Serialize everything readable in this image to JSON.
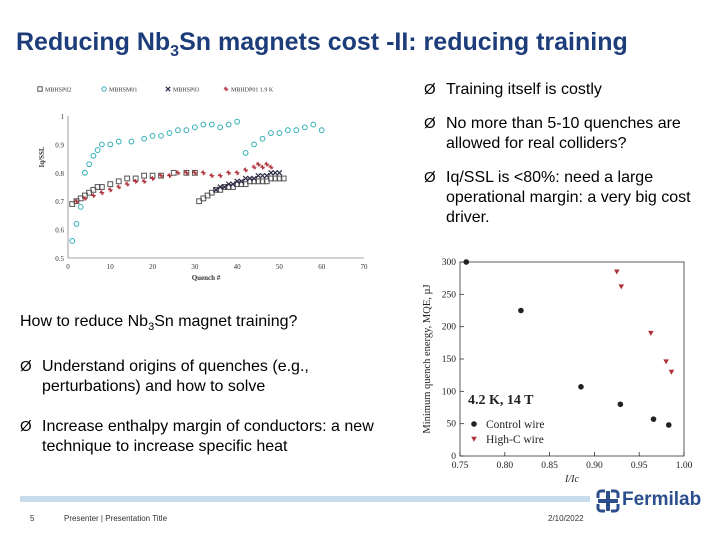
{
  "slide": {
    "title_a": "Reducing Nb",
    "title_sub": "3",
    "title_b": "Sn magnets cost -II: reducing training",
    "bullets_right": [
      "Training itself is costly",
      "No more than 5-10 quenches are allowed for real colliders?",
      "Iq/SSL is <80%: need a large operational margin: a very big cost driver."
    ],
    "question_a": "How to reduce Nb",
    "question_sub": "3",
    "question_b": "Sn magnet training?",
    "bullets_left": [
      "Understand origins of quenches (e.g., perturbations) and how to solve",
      "Increase enthalpy margin of conductors: a new technique to increase specific heat"
    ],
    "bullet_arrow": "Ø"
  },
  "footer": {
    "page_number": "5",
    "presenter": "Presenter | Presentation Title",
    "date": "2/10/2022",
    "logo_text": "Fermilab"
  },
  "colors": {
    "title": "#1d3d7a",
    "c1": "#555555",
    "c2": "#35b0b8",
    "c3": "#2a2a44",
    "c4": "#b0303a"
  },
  "chart_data": [
    {
      "type": "scatter",
      "title": "",
      "xlabel": "Quench #",
      "ylabel": "Iq/SSL",
      "xlim": [
        0,
        70
      ],
      "ylim": [
        0.5,
        1.0
      ],
      "xticks": [
        0,
        10,
        20,
        30,
        40,
        50,
        60,
        70
      ],
      "yticks": [
        0.5,
        0.6,
        0.7,
        0.8,
        0.9,
        1.0
      ],
      "ytick_labels": [
        "0.5",
        "0.6",
        "0.7",
        "0.8",
        "0.9",
        "1"
      ],
      "legend_position": "top",
      "series": [
        {
          "name": "MBHSP02",
          "marker": "square",
          "color": "#555555",
          "x": [
            1,
            2,
            3,
            4,
            5,
            6,
            7,
            8,
            10,
            12,
            14,
            16,
            18,
            20,
            22,
            25,
            28,
            30,
            31,
            32,
            33,
            34,
            35,
            36,
            37,
            38,
            39,
            40,
            41,
            42,
            43,
            44,
            45,
            46,
            47,
            48,
            49,
            50,
            51
          ],
          "y": [
            0.69,
            0.7,
            0.71,
            0.72,
            0.73,
            0.74,
            0.75,
            0.75,
            0.76,
            0.77,
            0.78,
            0.78,
            0.79,
            0.79,
            0.79,
            0.8,
            0.8,
            0.8,
            0.7,
            0.71,
            0.72,
            0.73,
            0.74,
            0.74,
            0.75,
            0.75,
            0.75,
            0.76,
            0.76,
            0.76,
            0.77,
            0.77,
            0.77,
            0.77,
            0.77,
            0.78,
            0.78,
            0.78,
            0.78
          ]
        },
        {
          "name": "MBHSM01",
          "marker": "circle",
          "color": "#35b0b8",
          "x": [
            1,
            2,
            3,
            4,
            5,
            6,
            7,
            8,
            10,
            12,
            15,
            18,
            20,
            22,
            24,
            26,
            28,
            30,
            32,
            34,
            36,
            38,
            40,
            42,
            44,
            46,
            48,
            50,
            52,
            54,
            56,
            58,
            60
          ],
          "y": [
            0.56,
            0.62,
            0.68,
            0.8,
            0.83,
            0.86,
            0.88,
            0.9,
            0.9,
            0.91,
            0.91,
            0.92,
            0.93,
            0.93,
            0.94,
            0.95,
            0.95,
            0.96,
            0.97,
            0.97,
            0.96,
            0.97,
            0.98,
            0.87,
            0.9,
            0.92,
            0.94,
            0.94,
            0.95,
            0.95,
            0.96,
            0.97,
            0.95
          ]
        },
        {
          "name": "MBHSP03",
          "marker": "cross",
          "color": "#2a2a44",
          "x": [
            35,
            36,
            37,
            38,
            39,
            40,
            41,
            42,
            43,
            44,
            45,
            46,
            47,
            48,
            49,
            50
          ],
          "y": [
            0.74,
            0.75,
            0.75,
            0.76,
            0.76,
            0.77,
            0.77,
            0.78,
            0.78,
            0.78,
            0.79,
            0.79,
            0.79,
            0.8,
            0.8,
            0.8
          ]
        },
        {
          "name": "MBHDP01 1.9 K",
          "marker": "star",
          "color": "#b0303a",
          "x": [
            2,
            4,
            6,
            8,
            10,
            12,
            14,
            16,
            18,
            20,
            22,
            24,
            26,
            28,
            30,
            32,
            34,
            36,
            38,
            40,
            42,
            44,
            45,
            46,
            47,
            48
          ],
          "y": [
            0.7,
            0.71,
            0.72,
            0.73,
            0.74,
            0.75,
            0.76,
            0.77,
            0.77,
            0.78,
            0.79,
            0.79,
            0.8,
            0.8,
            0.8,
            0.8,
            0.79,
            0.79,
            0.8,
            0.8,
            0.81,
            0.82,
            0.83,
            0.82,
            0.83,
            0.82
          ]
        }
      ]
    },
    {
      "type": "scatter",
      "title": "",
      "xlabel": "I/Ic",
      "ylabel": "Minimum quench energy, MQE, µJ",
      "xlim": [
        0.75,
        1.0
      ],
      "ylim": [
        0,
        300
      ],
      "xticks": [
        0.75,
        0.8,
        0.85,
        0.9,
        0.95,
        1.0
      ],
      "xtick_labels": [
        "0.75",
        "0.80",
        "0.85",
        "0.90",
        "0.95",
        "1.00"
      ],
      "yticks": [
        0,
        50,
        100,
        150,
        200,
        250,
        300
      ],
      "annotation": "4.2 K, 14 T",
      "legend_position": "bottom-left",
      "series": [
        {
          "name": "Control wire",
          "marker": "circle",
          "color": "#222222",
          "x": [
            0.757,
            0.818,
            0.885,
            0.929,
            0.966,
            0.983
          ],
          "y": [
            300,
            225,
            107,
            80,
            57,
            48
          ]
        },
        {
          "name": "High-C wire",
          "marker": "triangle-down",
          "color": "#b0303a",
          "x": [
            0.925,
            0.93,
            0.963,
            0.98,
            0.986
          ],
          "y": [
            285,
            262,
            190,
            146,
            130
          ]
        }
      ]
    }
  ]
}
